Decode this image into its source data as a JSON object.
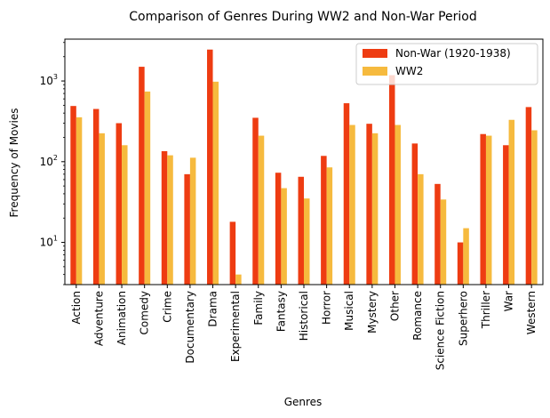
{
  "chart_data": {
    "type": "bar",
    "title": "Comparison of Genres During WW2 and Non-War Period",
    "xlabel": "Genres",
    "ylabel": "Frequency of Movies",
    "yscale": "log",
    "ylim": [
      3,
      3300
    ],
    "yticks": [
      {
        "value": 10,
        "base": "10",
        "exp": "1"
      },
      {
        "value": 100,
        "base": "10",
        "exp": "2"
      },
      {
        "value": 1000,
        "base": "10",
        "exp": "3"
      }
    ],
    "grid": false,
    "legend_position": "top-right",
    "categories": [
      "Action",
      "Adventure",
      "Animation",
      "Comedy",
      "Crime",
      "Documentary",
      "Drama",
      "Experimental",
      "Family",
      "Fantasy",
      "Historical",
      "Horror",
      "Musical",
      "Mystery",
      "Other",
      "Romance",
      "Science Fiction",
      "Superhero",
      "Thriller",
      "War",
      "Western"
    ],
    "series": [
      {
        "name": "Non-War (1920-1938)",
        "color": "#ee3c12",
        "values": [
          490,
          450,
          300,
          1500,
          135,
          70,
          2450,
          18,
          350,
          73,
          65,
          118,
          530,
          295,
          1180,
          168,
          53,
          10,
          220,
          160,
          475
        ]
      },
      {
        "name": "WW2",
        "color": "#f6ba3e",
        "values": [
          355,
          225,
          160,
          740,
          120,
          112,
          980,
          4,
          210,
          47,
          35,
          85,
          285,
          225,
          285,
          70,
          34,
          15,
          210,
          330,
          245
        ]
      }
    ]
  }
}
